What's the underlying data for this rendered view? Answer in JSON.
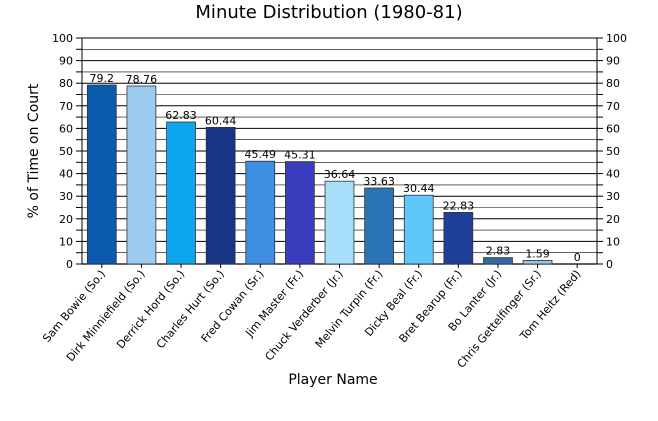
{
  "chart_data": {
    "type": "bar",
    "title": "Minute Distribution (1980-81)",
    "xlabel": "Player Name",
    "ylabel": "% of Time on Court",
    "ylim": [
      0,
      100
    ],
    "yticks": [
      "0",
      "10",
      "20",
      "30",
      "40",
      "50",
      "60",
      "70",
      "80",
      "90",
      "100"
    ],
    "grid": true,
    "categories": [
      "Sam Bowie (So.)",
      "Dirk Minniefield (So.)",
      "Derrick Hord (So.)",
      "Charles Hurt (So.)",
      "Fred Cowan (Sr.)",
      "Jim Master (Fr.)",
      "Chuck Verderber (Jr.)",
      "Melvin Turpin (Fr.)",
      "Dicky Beal (Fr.)",
      "Bret Bearup (Fr.)",
      "Bo Lanter (Jr.)",
      "Chris Gettelfinger (Sr.)",
      "Tom Heitz (Red)"
    ],
    "values": [
      79.2,
      78.76,
      62.83,
      60.44,
      45.49,
      45.31,
      36.64,
      33.63,
      30.44,
      22.83,
      2.83,
      1.59,
      0
    ],
    "value_labels": [
      "79.2",
      "78.76",
      "62.83",
      "60.44",
      "45.49",
      "45.31",
      "36.64",
      "33.63",
      "30.44",
      "22.83",
      "2.83",
      "1.59",
      "0"
    ],
    "colors": [
      "#0a5bab",
      "#9ccbf0",
      "#0da6ee",
      "#173584",
      "#3e8fe2",
      "#3a3bbd",
      "#a7defa",
      "#2b74b3",
      "#5fc8f8",
      "#1f3f98",
      "#3268a3",
      "#9bc5e8",
      "#5bbdf2"
    ]
  }
}
